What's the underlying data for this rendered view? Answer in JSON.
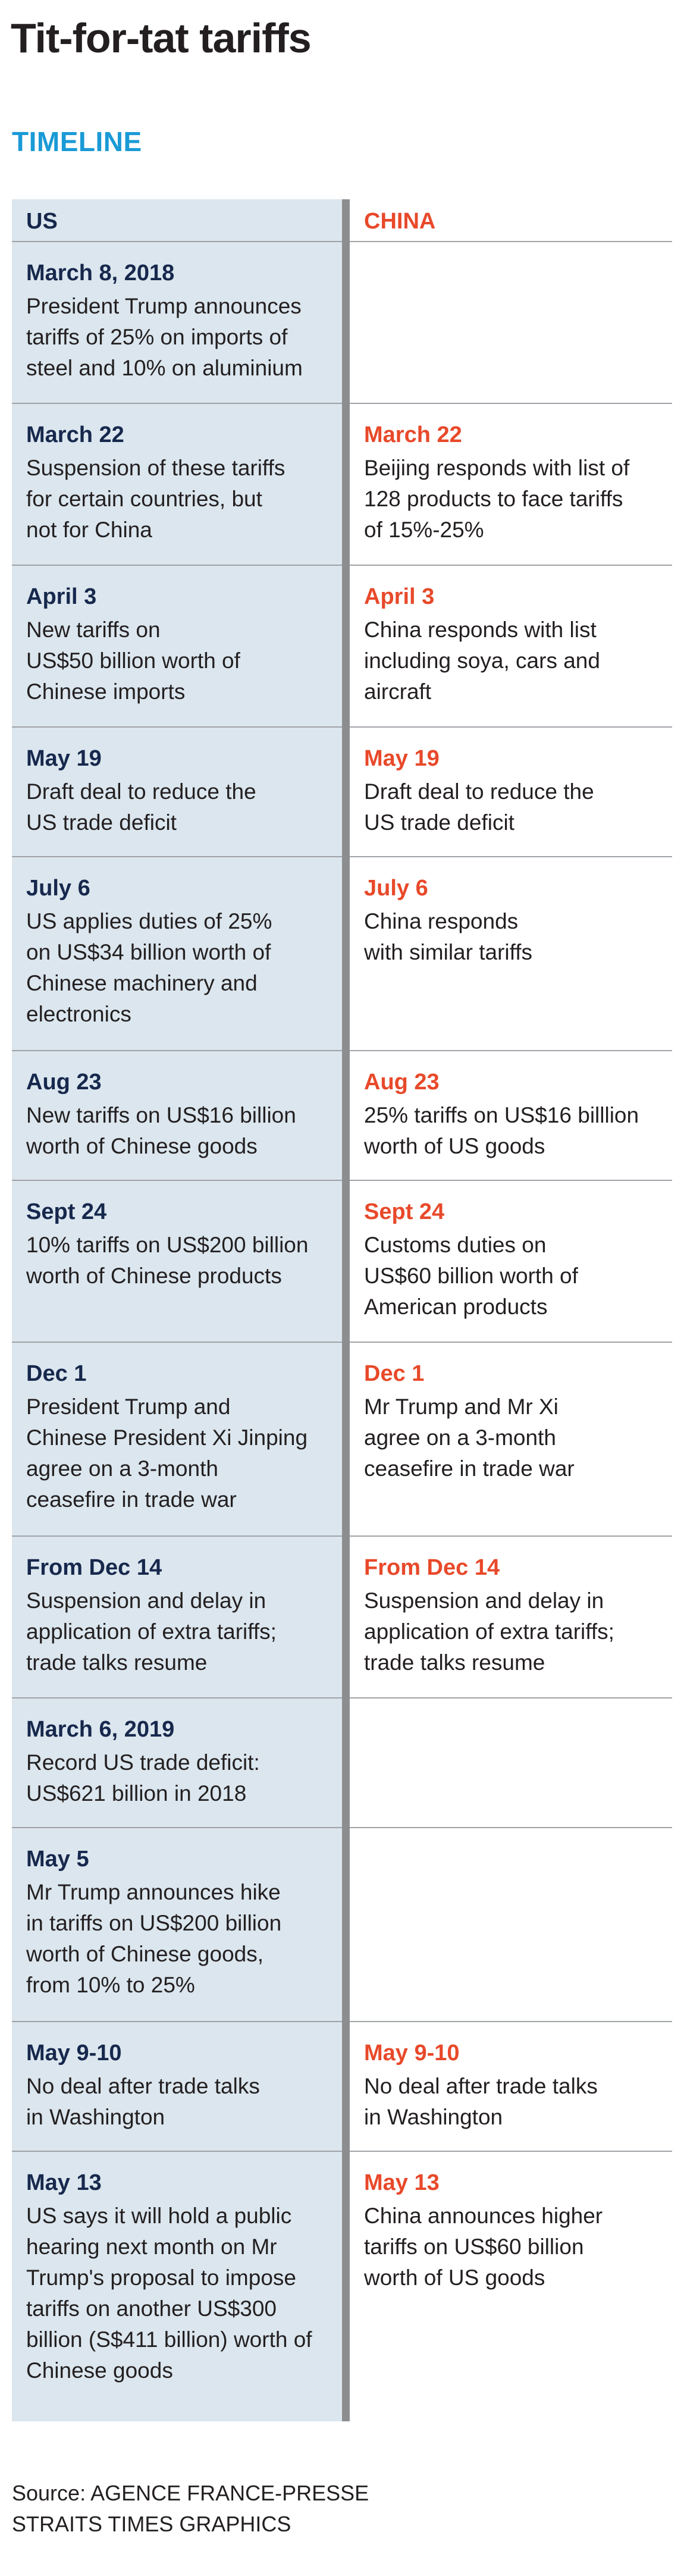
{
  "title": "Tit-for-tat tariffs",
  "section_heading": "TIMELINE",
  "columns": {
    "us": "US",
    "china": "CHINA"
  },
  "rows": [
    {
      "us": {
        "date": "March 8, 2018",
        "text": "President Trump announces\ntariffs of 25% on imports of\nsteel and 10% on aluminium"
      },
      "china": {
        "date": "",
        "text": ""
      }
    },
    {
      "us": {
        "date": "March 22",
        "text": "Suspension of these tariffs\nfor certain countries, but\nnot for China"
      },
      "china": {
        "date": "March 22",
        "text": "Beijing responds with list of\n128 products to face tariffs\nof 15%-25%"
      }
    },
    {
      "us": {
        "date": "April 3",
        "text": "New tariffs on\nUS$50 billion worth of\nChinese imports"
      },
      "china": {
        "date": "April 3",
        "text": "China responds with list\nincluding soya, cars and\naircraft"
      }
    },
    {
      "us": {
        "date": "May 19",
        "text": "Draft deal to reduce the\nUS trade deficit"
      },
      "china": {
        "date": "May 19",
        "text": "Draft deal to reduce the\nUS trade deficit"
      }
    },
    {
      "us": {
        "date": "July 6",
        "text": "US applies duties of 25%\non US$34 billion worth of\nChinese machinery and\nelectronics"
      },
      "china": {
        "date": "July 6",
        "text": "China responds\nwith similar tariffs"
      }
    },
    {
      "us": {
        "date": "Aug 23",
        "text": "New tariffs on US$16 billion\nworth of Chinese goods"
      },
      "china": {
        "date": "Aug 23",
        "text": "25% tariffs on US$16 billlion\nworth of US goods"
      }
    },
    {
      "us": {
        "date": "Sept 24",
        "text": "10% tariffs on US$200 billion\nworth of Chinese products"
      },
      "china": {
        "date": "Sept 24",
        "text": "Customs duties on\nUS$60 billion worth of\nAmerican products"
      }
    },
    {
      "us": {
        "date": "Dec 1",
        "text": "President Trump and\nChinese President Xi Jinping\nagree on a 3-month\nceasefire in trade war"
      },
      "china": {
        "date": "Dec 1",
        "text": "Mr Trump and Mr Xi\nagree on a 3-month\nceasefire in trade war"
      }
    },
    {
      "us": {
        "date": "From Dec 14",
        "text": "Suspension and delay in\napplication of extra tariffs;\ntrade talks resume"
      },
      "china": {
        "date": "From Dec 14",
        "text": "Suspension and delay in\napplication of extra tariffs;\ntrade talks resume"
      }
    },
    {
      "us": {
        "date": "March 6, 2019",
        "text": "Record US trade deficit:\nUS$621 billion in 2018"
      },
      "china": {
        "date": "",
        "text": ""
      }
    },
    {
      "us": {
        "date": "May 5",
        "text": "Mr Trump announces hike\nin tariffs on US$200 billion\nworth of Chinese goods,\nfrom 10% to 25%"
      },
      "china": {
        "date": "",
        "text": ""
      }
    },
    {
      "us": {
        "date": "May 9-10",
        "text": "No deal after trade talks\nin Washington"
      },
      "china": {
        "date": "May 9-10",
        "text": "No deal after trade talks\nin Washington"
      }
    },
    {
      "us": {
        "date": "May 13",
        "text": "US says it will hold a public\nhearing next month on Mr\nTrump's proposal to impose\ntariffs on another US$300\nbillion (S$411 billion) worth of\nChinese goods"
      },
      "china": {
        "date": "May 13",
        "text": "China announces higher\ntariffs on US$60 billion\nworth of US goods"
      }
    }
  ],
  "source": "Source: AGENCE FRANCE-PRESSE",
  "credit": "STRAITS TIMES GRAPHICS",
  "colors": {
    "title": "#231f20",
    "timeline_heading": "#1a9ad6",
    "us_date": "#17284d",
    "china_date": "#e8492a",
    "us_background": "#dbe6ee",
    "divider": "#8b8d8f"
  }
}
